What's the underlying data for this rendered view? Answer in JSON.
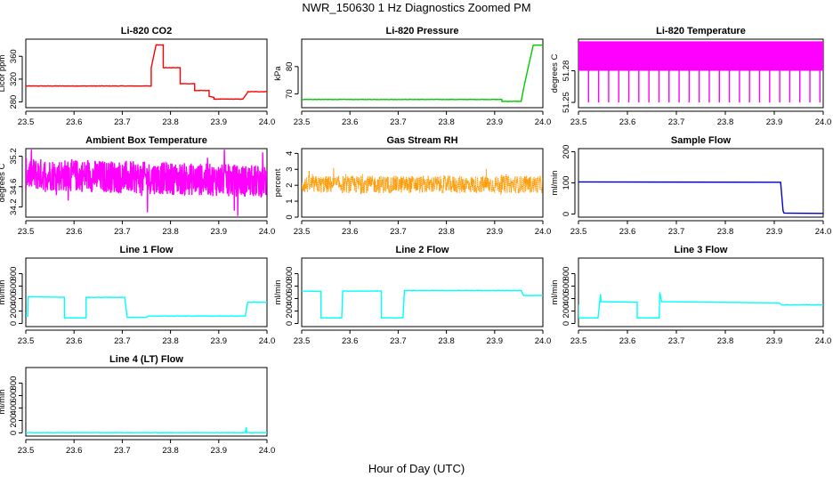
{
  "figure": {
    "title": "NWR_150630  1 Hz Diagnostics Zoomed PM",
    "xlabel": "Hour of Day (UTC)"
  },
  "chart_data": [
    {
      "id": "co2",
      "type": "line",
      "title": "Li-820 CO2",
      "ylabel": "Licor ppm",
      "color": "#ff0000",
      "xlim": [
        23.5,
        24.0
      ],
      "ylim": [
        270,
        390
      ],
      "xticks": [
        "23.5",
        "23.6",
        "23.7",
        "23.8",
        "23.9",
        "24.0"
      ],
      "yticks": [
        "280",
        "320",
        "360"
      ],
      "series": [
        {
          "x": [
            23.5,
            23.76,
            23.76,
            23.77,
            23.77,
            23.785,
            23.785,
            23.82,
            23.82,
            23.85,
            23.85,
            23.88,
            23.88,
            23.89,
            23.89,
            23.95,
            23.95,
            23.96,
            23.96,
            24.0
          ],
          "y": [
            308,
            308,
            340,
            380,
            380,
            380,
            340,
            340,
            312,
            312,
            300,
            300,
            290,
            288,
            285,
            285,
            285,
            297,
            298,
            298
          ]
        }
      ]
    },
    {
      "id": "pressure",
      "type": "line",
      "title": "Li-820 Pressure",
      "ylabel": "kPa",
      "color": "#00cc00",
      "xlim": [
        23.5,
        24.0
      ],
      "ylim": [
        65,
        90
      ],
      "xticks": [
        "23.5",
        "23.6",
        "23.7",
        "23.8",
        "23.9",
        "24.0"
      ],
      "yticks": [
        "70",
        "80"
      ],
      "series": [
        {
          "x": [
            23.5,
            23.915,
            23.915,
            23.955,
            23.96,
            23.97,
            23.98,
            24.0
          ],
          "y": [
            68,
            68,
            67.3,
            67.3,
            72,
            80,
            87.8,
            87.8
          ]
        }
      ]
    },
    {
      "id": "li820_temp",
      "type": "line",
      "title": "Li-820 Temperature",
      "ylabel": "degrees C",
      "color": "#ff00ff",
      "xlim": [
        23.5,
        24.0
      ],
      "ylim": [
        51.245,
        51.31
      ],
      "xticks": [
        "23.5",
        "23.6",
        "23.7",
        "23.8",
        "23.9",
        "24.0"
      ],
      "yticks": [
        "51.25",
        "51.28"
      ],
      "series": [
        {
          "x": [
            23.5,
            24.0
          ],
          "y": [
            51.28,
            51.3
          ]
        }
      ]
    },
    {
      "id": "box_temp",
      "type": "line",
      "title": "Ambient Box Temperature",
      "ylabel": "degrees C",
      "color": "#ff00ff",
      "xlim": [
        23.5,
        24.0
      ],
      "ylim": [
        34.0,
        35.35
      ],
      "xticks": [
        "23.5",
        "23.6",
        "23.7",
        "23.8",
        "23.9",
        "24.0"
      ],
      "yticks": [
        "34.2",
        "34.6",
        "35.2"
      ],
      "series": [
        {
          "x": [
            23.5,
            23.6,
            23.7,
            23.8,
            23.9,
            24.0
          ],
          "y": [
            34.8,
            34.8,
            34.75,
            34.7,
            34.7,
            34.7
          ]
        }
      ]
    },
    {
      "id": "rh",
      "type": "line",
      "title": "Gas Stream RH",
      "ylabel": "percent",
      "color": "#ff9900",
      "xlim": [
        23.5,
        24.0
      ],
      "ylim": [
        0,
        4.3
      ],
      "xticks": [
        "23.5",
        "23.6",
        "23.7",
        "23.8",
        "23.9",
        "24.0"
      ],
      "yticks": [
        "0",
        "1",
        "2",
        "3",
        "4"
      ],
      "series": [
        {
          "x": [
            23.5,
            24.0
          ],
          "y": [
            2.0,
            2.0
          ]
        }
      ]
    },
    {
      "id": "sample_flow",
      "type": "line",
      "title": "Sample Flow",
      "ylabel": "ml/min",
      "color": "#0000cc",
      "xlim": [
        23.5,
        24.0
      ],
      "ylim": [
        -10,
        210
      ],
      "xticks": [
        "23.5",
        "23.6",
        "23.7",
        "23.8",
        "23.9",
        "24.0"
      ],
      "yticks": [
        "0",
        "100",
        "200"
      ],
      "series": [
        {
          "x": [
            23.5,
            23.913,
            23.918,
            23.92,
            24.0
          ],
          "y": [
            103,
            102,
            10,
            3,
            2
          ]
        }
      ]
    },
    {
      "id": "line1",
      "type": "line",
      "title": "Line 1 Flow",
      "ylabel": "ml/min",
      "color": "#00ffff",
      "xlim": [
        23.5,
        24.0
      ],
      "ylim": [
        -50,
        1050
      ],
      "xticks": [
        "23.5",
        "23.6",
        "23.7",
        "23.8",
        "23.9",
        "24.0"
      ],
      "yticks": [
        "0",
        "200",
        "400",
        "600",
        "800"
      ],
      "series": [
        {
          "x": [
            23.5,
            23.504,
            23.505,
            23.58,
            23.58,
            23.625,
            23.625,
            23.705,
            23.71,
            23.75,
            23.755,
            23.955,
            23.96,
            24.0
          ],
          "y": [
            120,
            120,
            430,
            420,
            90,
            90,
            420,
            420,
            100,
            100,
            120,
            120,
            340,
            340
          ]
        }
      ]
    },
    {
      "id": "line2",
      "type": "line",
      "title": "Line 2 Flow",
      "ylabel": "ml/min",
      "color": "#00ffff",
      "xlim": [
        23.5,
        24.0
      ],
      "ylim": [
        -50,
        1050
      ],
      "xticks": [
        "23.5",
        "23.6",
        "23.7",
        "23.8",
        "23.9",
        "24.0"
      ],
      "yticks": [
        "0",
        "200",
        "400",
        "600",
        "800"
      ],
      "series": [
        {
          "x": [
            23.5,
            23.54,
            23.54,
            23.583,
            23.585,
            23.665,
            23.665,
            23.71,
            23.713,
            23.955,
            23.96,
            24.0
          ],
          "y": [
            520,
            515,
            90,
            90,
            520,
            520,
            90,
            90,
            530,
            530,
            450,
            450
          ]
        }
      ]
    },
    {
      "id": "line3",
      "type": "line",
      "title": "Line 3 Flow",
      "ylabel": "ml/min",
      "color": "#00ffff",
      "xlim": [
        23.5,
        24.0
      ],
      "ylim": [
        -50,
        1050
      ],
      "xticks": [
        "23.5",
        "23.6",
        "23.7",
        "23.8",
        "23.9",
        "24.0"
      ],
      "yticks": [
        "0",
        "200",
        "400",
        "600",
        "800"
      ],
      "series": [
        {
          "x": [
            23.5,
            23.5,
            23.505,
            23.54,
            23.545,
            23.546,
            23.62,
            23.62,
            23.665,
            23.666,
            23.67,
            23.91,
            23.915,
            24.0
          ],
          "y": [
            300,
            90,
            90,
            90,
            470,
            350,
            340,
            90,
            90,
            500,
            350,
            330,
            300,
            300
          ]
        }
      ]
    },
    {
      "id": "line4",
      "type": "line",
      "title": "Line 4 (LT) Flow",
      "ylabel": "ml/min",
      "color": "#00ffff",
      "xlim": [
        23.5,
        24.0
      ],
      "ylim": [
        -50,
        1050
      ],
      "xticks": [
        "23.5",
        "23.6",
        "23.7",
        "23.8",
        "23.9",
        "24.0"
      ],
      "yticks": [
        "0",
        "200",
        "400",
        "600",
        "800"
      ],
      "series": [
        {
          "x": [
            23.5,
            23.955,
            23.957,
            23.958,
            24.0
          ],
          "y": [
            5,
            5,
            90,
            5,
            5
          ]
        }
      ]
    }
  ]
}
